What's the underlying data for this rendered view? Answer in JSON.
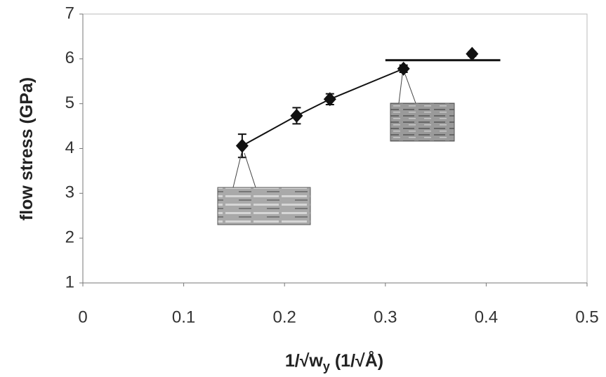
{
  "chart_data": {
    "type": "scatter",
    "ylabel": "flow stress (GPa)",
    "xlabel": [
      "1/√w",
      "y",
      " (1/√Å)"
    ],
    "xlim": [
      0,
      0.5
    ],
    "xticks": [
      0,
      0.1,
      0.2,
      0.3,
      0.4,
      0.5
    ],
    "ylim": [
      1,
      7
    ],
    "yticks": [
      1,
      2,
      3,
      4,
      5,
      6,
      7
    ],
    "grid": false,
    "series": [
      {
        "color": "#111111",
        "x": [
          0.158,
          0.212,
          0.245,
          0.318,
          0.386
        ],
        "values": [
          4.06,
          4.73,
          5.1,
          5.78,
          6.11
        ],
        "errors": [
          0.26,
          0.18,
          0.12,
          0.08,
          0.05
        ]
      }
    ],
    "lines": [
      {
        "x": [
          0.158,
          0.212,
          0.245,
          0.318
        ],
        "y": [
          4.06,
          4.73,
          5.1,
          5.78
        ],
        "width": 2
      },
      {
        "x": [
          0.3,
          0.414
        ],
        "y": [
          5.97,
          5.97
        ],
        "width": 3
      }
    ]
  }
}
